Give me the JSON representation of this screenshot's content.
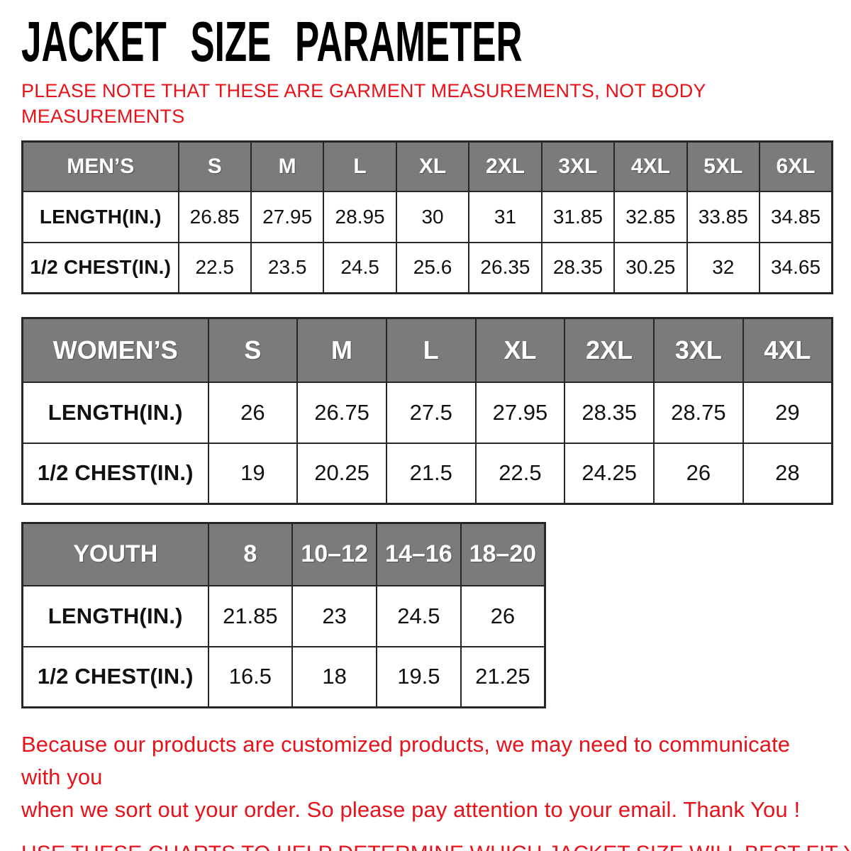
{
  "page": {
    "title": "JACKET SIZE PARAMETER",
    "note": "PLEASE NOTE THAT THESE ARE GARMENT MEASUREMENTS, NOT BODY\nMEASUREMENTS",
    "footer_paragraph": "Because our products are customized products, we may need to communicate with you\nwhen we sort out your order. So please pay attention to your email. Thank You !",
    "footer_callout": "USE THESE CHARTS TO HELP DETERMINE WHICH JACKET SIZE WILL BEST FIT YOU."
  },
  "colors": {
    "accent_red": "#e8121a",
    "header_gray": "#7b7b7b",
    "table_border": "#262626"
  },
  "tables": [
    {
      "id": "mens",
      "header": [
        "MEN’S",
        "S",
        "M",
        "L",
        "XL",
        "2XL",
        "3XL",
        "4XL",
        "5XL",
        "6XL"
      ],
      "rows": [
        [
          "LENGTH(IN.)",
          "26.85",
          "27.95",
          "28.95",
          "30",
          "31",
          "31.85",
          "32.85",
          "33.85",
          "34.85"
        ],
        [
          "1/2 CHEST(IN.)",
          "22.5",
          "23.5",
          "24.5",
          "25.6",
          "26.35",
          "28.35",
          "30.25",
          "32",
          "34.65"
        ]
      ]
    },
    {
      "id": "womens",
      "header": [
        "WOMEN’S",
        "S",
        "M",
        "L",
        "XL",
        "2XL",
        "3XL",
        "4XL"
      ],
      "rows": [
        [
          "LENGTH(IN.)",
          "26",
          "26.75",
          "27.5",
          "27.95",
          "28.35",
          "28.75",
          "29"
        ],
        [
          "1/2 CHEST(IN.)",
          "19",
          "20.25",
          "21.5",
          "22.5",
          "24.25",
          "26",
          "28"
        ]
      ]
    },
    {
      "id": "youth",
      "header": [
        "YOUTH",
        "8",
        "10–12",
        "14–16",
        "18–20"
      ],
      "rows": [
        [
          "LENGTH(IN.)",
          "21.85",
          "23",
          "24.5",
          "26"
        ],
        [
          "1/2 CHEST(IN.)",
          "16.5",
          "18",
          "19.5",
          "21.25"
        ]
      ]
    }
  ]
}
